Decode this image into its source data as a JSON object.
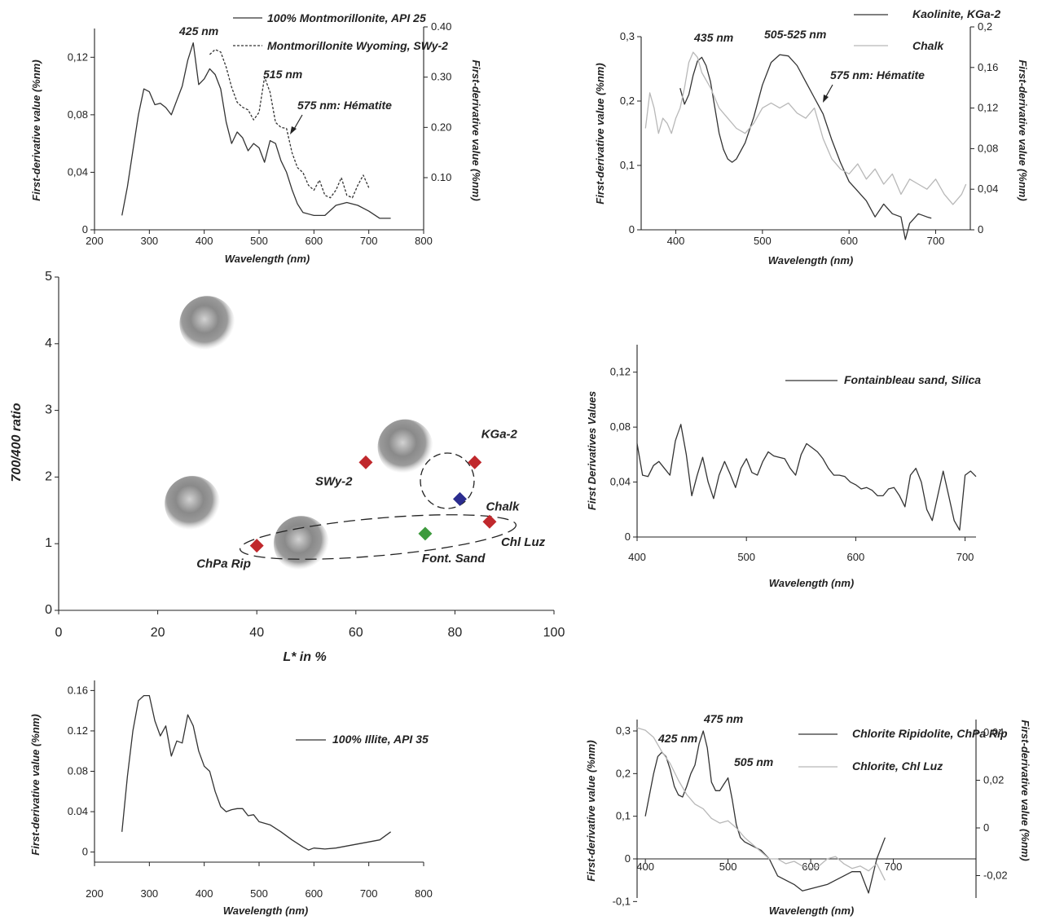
{
  "chart_data": [
    {
      "id": "p1",
      "type": "line",
      "xlabel": "Wavelength (nm)",
      "ylabel": "First-derivative value (%nm)",
      "ylabel_right": "First-derivative value (%nm)",
      "xlim": [
        200,
        800
      ],
      "ylim": [
        0,
        0.14
      ],
      "ylim_right": [
        0.02,
        0.4
      ],
      "xticks": [
        "200",
        "300",
        "400",
        "500",
        "600",
        "700",
        "800"
      ],
      "yticks": [
        "0",
        "0,04",
        "0,08",
        "0,12"
      ],
      "yticks_right": [
        "0.10",
        "0.20",
        "0.30",
        "0.40"
      ],
      "series": [
        {
          "name": "100% Montmorillonite, API 25",
          "axis": "left",
          "style": "solid",
          "color": "#333333",
          "x": [
            250,
            260,
            270,
            280,
            290,
            300,
            310,
            320,
            330,
            340,
            350,
            360,
            370,
            380,
            390,
            400,
            410,
            420,
            430,
            440,
            450,
            460,
            470,
            480,
            490,
            500,
            510,
            520,
            530,
            540,
            550,
            560,
            570,
            580,
            600,
            620,
            640,
            660,
            680,
            700,
            720,
            740
          ],
          "y": [
            0.01,
            0.03,
            0.055,
            0.08,
            0.098,
            0.096,
            0.087,
            0.088,
            0.085,
            0.08,
            0.09,
            0.1,
            0.118,
            0.13,
            0.101,
            0.105,
            0.112,
            0.108,
            0.098,
            0.075,
            0.06,
            0.068,
            0.064,
            0.055,
            0.06,
            0.057,
            0.047,
            0.062,
            0.06,
            0.048,
            0.04,
            0.028,
            0.018,
            0.012,
            0.01,
            0.01,
            0.017,
            0.019,
            0.017,
            0.013,
            0.008,
            0.008
          ]
        },
        {
          "name": "Montmorillonite Wyoming, SWy-2",
          "axis": "right",
          "style": "dashed",
          "color": "#333333",
          "x": [
            410,
            420,
            430,
            440,
            450,
            460,
            470,
            480,
            490,
            500,
            510,
            520,
            530,
            540,
            550,
            560,
            570,
            580,
            590,
            600,
            610,
            620,
            630,
            640,
            650,
            660,
            670,
            680,
            690,
            700
          ],
          "y": [
            0.345,
            0.355,
            0.35,
            0.32,
            0.28,
            0.25,
            0.24,
            0.235,
            0.215,
            0.23,
            0.3,
            0.27,
            0.21,
            0.2,
            0.198,
            0.15,
            0.12,
            0.11,
            0.085,
            0.075,
            0.095,
            0.065,
            0.06,
            0.075,
            0.1,
            0.065,
            0.06,
            0.085,
            0.105,
            0.08
          ]
        }
      ],
      "annotations": [
        "425 nm",
        "515 nm",
        "575 nm: Hématite"
      ]
    },
    {
      "id": "p2",
      "type": "line",
      "xlabel": "Wavelength (nm)",
      "ylabel": "First-derivative value (%nm)",
      "ylabel_right": "First-derivative value (%nm)",
      "xlim": [
        360,
        740
      ],
      "ylim": [
        0,
        0.3
      ],
      "ylim_right": [
        0,
        0.2
      ],
      "xticks": [
        "400",
        "500",
        "600",
        "700"
      ],
      "yticks": [
        "0",
        "0,1",
        "0,2",
        "0,3"
      ],
      "yticks_right": [
        "0",
        "0,04",
        "0,08",
        "0,12",
        "0,16",
        "0,2"
      ],
      "series": [
        {
          "name": "Kaolinite, KGa-2",
          "axis": "left",
          "style": "solid",
          "color": "#333333",
          "x": [
            405,
            410,
            415,
            420,
            425,
            430,
            435,
            440,
            445,
            450,
            455,
            460,
            465,
            470,
            480,
            490,
            500,
            510,
            520,
            530,
            540,
            550,
            560,
            570,
            580,
            590,
            600,
            610,
            620,
            630,
            640,
            650,
            660,
            665,
            670,
            680,
            690,
            695
          ],
          "y": [
            0.22,
            0.195,
            0.21,
            0.24,
            0.262,
            0.268,
            0.255,
            0.23,
            0.19,
            0.15,
            0.125,
            0.11,
            0.105,
            0.11,
            0.135,
            0.175,
            0.225,
            0.26,
            0.272,
            0.27,
            0.255,
            0.23,
            0.205,
            0.18,
            0.14,
            0.105,
            0.075,
            0.06,
            0.045,
            0.02,
            0.04,
            0.025,
            0.02,
            -0.015,
            0.01,
            0.025,
            0.02,
            0.018
          ]
        },
        {
          "name": "Chalk",
          "axis": "right",
          "style": "solid",
          "color": "#b8b8b8",
          "x": [
            365,
            370,
            375,
            380,
            385,
            390,
            395,
            400,
            405,
            410,
            415,
            420,
            425,
            430,
            440,
            450,
            460,
            470,
            480,
            490,
            500,
            510,
            520,
            530,
            540,
            550,
            560,
            570,
            580,
            590,
            600,
            610,
            620,
            630,
            640,
            650,
            660,
            670,
            680,
            690,
            700,
            710,
            720,
            730,
            735
          ],
          "y": [
            0.1,
            0.135,
            0.12,
            0.095,
            0.11,
            0.105,
            0.095,
            0.11,
            0.12,
            0.14,
            0.165,
            0.175,
            0.17,
            0.155,
            0.14,
            0.12,
            0.11,
            0.1,
            0.095,
            0.105,
            0.12,
            0.125,
            0.12,
            0.125,
            0.115,
            0.11,
            0.12,
            0.09,
            0.07,
            0.06,
            0.055,
            0.065,
            0.05,
            0.06,
            0.045,
            0.055,
            0.035,
            0.05,
            0.045,
            0.04,
            0.05,
            0.035,
            0.025,
            0.035,
            0.045
          ]
        }
      ],
      "annotations": [
        "435 nm",
        "505-525 nm",
        "575 nm: Hématite"
      ]
    },
    {
      "id": "p3",
      "type": "scatter",
      "xlabel": "L* in %",
      "ylabel": "700/400 ratio",
      "xlim": [
        0,
        100
      ],
      "ylim": [
        0,
        5
      ],
      "xticks": [
        "0",
        "20",
        "40",
        "60",
        "80",
        "100"
      ],
      "yticks": [
        "0",
        "1",
        "2",
        "3",
        "4",
        "5"
      ],
      "points": [
        {
          "label": "SWy-2",
          "x": 62,
          "y": 2.22,
          "color": "#c0282c"
        },
        {
          "label": "KGa-2",
          "x": 84,
          "y": 2.22,
          "color": "#c0282c"
        },
        {
          "label": "Chalk",
          "x": 81,
          "y": 1.67,
          "color": "#2b2c8f"
        },
        {
          "label": "Chl Luz",
          "x": 87,
          "y": 1.33,
          "color": "#c0282c"
        },
        {
          "label": "Font. Sand",
          "x": 74,
          "y": 1.15,
          "color": "#3d9a3d"
        },
        {
          "label": "ChPa Rip",
          "x": 40,
          "y": 0.97,
          "color": "#c0282c"
        }
      ],
      "blurred_points": [
        {
          "x": 30,
          "y": 4.3
        },
        {
          "x": 70,
          "y": 2.45
        },
        {
          "x": 27,
          "y": 1.6
        },
        {
          "x": 49,
          "y": 1.0
        }
      ]
    },
    {
      "id": "p4",
      "type": "line",
      "xlabel": "Wavelength (nm)",
      "ylabel": "First Derivatives Values",
      "xlim": [
        400,
        710
      ],
      "ylim": [
        0,
        0.14
      ],
      "xticks": [
        "400",
        "500",
        "600",
        "700"
      ],
      "yticks": [
        "0",
        "0,04",
        "0,08",
        "0,12"
      ],
      "series": [
        {
          "name": "Fontainbleau sand, Silica",
          "axis": "left",
          "style": "solid",
          "color": "#333333",
          "x": [
            400,
            405,
            410,
            415,
            420,
            425,
            430,
            435,
            440,
            445,
            450,
            455,
            460,
            465,
            470,
            475,
            480,
            485,
            490,
            495,
            500,
            505,
            510,
            515,
            520,
            525,
            530,
            535,
            540,
            545,
            550,
            555,
            560,
            565,
            570,
            575,
            580,
            585,
            590,
            595,
            600,
            605,
            610,
            615,
            620,
            625,
            630,
            635,
            640,
            645,
            650,
            655,
            660,
            665,
            670,
            675,
            680,
            685,
            690,
            695,
            700,
            705,
            710
          ],
          "y": [
            0.068,
            0.045,
            0.044,
            0.052,
            0.055,
            0.05,
            0.045,
            0.07,
            0.082,
            0.06,
            0.03,
            0.045,
            0.058,
            0.04,
            0.028,
            0.045,
            0.055,
            0.046,
            0.036,
            0.05,
            0.057,
            0.047,
            0.045,
            0.055,
            0.062,
            0.059,
            0.058,
            0.057,
            0.05,
            0.045,
            0.06,
            0.068,
            0.065,
            0.062,
            0.057,
            0.05,
            0.045,
            0.045,
            0.044,
            0.04,
            0.038,
            0.035,
            0.036,
            0.034,
            0.03,
            0.03,
            0.035,
            0.036,
            0.03,
            0.022,
            0.045,
            0.05,
            0.04,
            0.02,
            0.012,
            0.03,
            0.048,
            0.03,
            0.012,
            0.005,
            0.045,
            0.048,
            0.044
          ]
        }
      ]
    },
    {
      "id": "p5",
      "type": "line",
      "xlabel": "Wavelength (nm)",
      "ylabel": "First-derivative value (%nm)",
      "xlim": [
        200,
        800
      ],
      "ylim": [
        -0.01,
        0.17
      ],
      "xticks": [
        "200",
        "300",
        "400",
        "500",
        "600",
        "700",
        "800"
      ],
      "yticks": [
        "0",
        "0.04",
        "0.08",
        "0.12",
        "0.16"
      ],
      "series": [
        {
          "name": "100% Illite, API 35",
          "axis": "left",
          "style": "solid",
          "color": "#333333",
          "x": [
            250,
            260,
            270,
            280,
            290,
            300,
            310,
            320,
            330,
            340,
            350,
            360,
            370,
            380,
            390,
            400,
            410,
            420,
            430,
            440,
            450,
            460,
            470,
            480,
            490,
            500,
            520,
            540,
            560,
            580,
            590,
            600,
            620,
            640,
            660,
            680,
            700,
            720,
            740
          ],
          "y": [
            0.02,
            0.075,
            0.12,
            0.15,
            0.155,
            0.155,
            0.13,
            0.115,
            0.125,
            0.095,
            0.11,
            0.108,
            0.136,
            0.125,
            0.1,
            0.085,
            0.08,
            0.06,
            0.045,
            0.04,
            0.042,
            0.043,
            0.043,
            0.036,
            0.037,
            0.03,
            0.027,
            0.02,
            0.012,
            0.005,
            0.002,
            0.004,
            0.003,
            0.004,
            0.006,
            0.008,
            0.01,
            0.012,
            0.02
          ]
        }
      ]
    },
    {
      "id": "p6",
      "type": "line",
      "xlabel": "Wavelength (nm)",
      "ylabel": "First-derivative value (%nm)",
      "ylabel_right": "First-derivative value (%nm)",
      "xlim": [
        390,
        800
      ],
      "ylim": [
        -0.12,
        0.33
      ],
      "ylim_right": [
        -0.025,
        0.046
      ],
      "xticks": [
        "400",
        "500",
        "600",
        "700"
      ],
      "yticks": [
        "-0,1",
        "0",
        "0,1",
        "0,2",
        "0,3"
      ],
      "yticks_right": [
        "-0,02",
        "0",
        "0,02",
        "0,04"
      ],
      "series": [
        {
          "name": "Chlorite Ripidolite, ChPa Rip",
          "axis": "left",
          "style": "solid",
          "color": "#333333",
          "x": [
            400,
            405,
            410,
            415,
            420,
            425,
            430,
            435,
            440,
            445,
            450,
            455,
            460,
            465,
            470,
            475,
            480,
            485,
            490,
            495,
            500,
            505,
            510,
            515,
            520,
            530,
            540,
            550,
            560,
            570,
            580,
            590,
            600,
            610,
            620,
            630,
            640,
            650,
            660,
            670,
            680,
            690
          ],
          "y": [
            0.1,
            0.15,
            0.2,
            0.24,
            0.25,
            0.24,
            0.21,
            0.17,
            0.15,
            0.145,
            0.17,
            0.2,
            0.22,
            0.27,
            0.3,
            0.26,
            0.18,
            0.16,
            0.16,
            0.175,
            0.19,
            0.14,
            0.08,
            0.05,
            0.04,
            0.03,
            0.02,
            0.0,
            -0.04,
            -0.05,
            -0.06,
            -0.075,
            -0.07,
            -0.065,
            -0.06,
            -0.05,
            -0.04,
            -0.03,
            -0.03,
            -0.08,
            0.0,
            0.05
          ]
        },
        {
          "name": "Chlorite, Chl Luz",
          "axis": "right",
          "style": "solid",
          "color": "#b8b8b8",
          "x": [
            390,
            400,
            410,
            420,
            430,
            440,
            450,
            460,
            470,
            480,
            490,
            500,
            510,
            520,
            530,
            540,
            550,
            560,
            570,
            580,
            590,
            600,
            610,
            620,
            630,
            640,
            650,
            660,
            670,
            680,
            690
          ],
          "y": [
            0.042,
            0.041,
            0.038,
            0.032,
            0.027,
            0.02,
            0.014,
            0.01,
            0.008,
            0.004,
            0.002,
            0.003,
            0.0,
            -0.004,
            -0.007,
            -0.01,
            -0.013,
            -0.013,
            -0.015,
            -0.014,
            -0.016,
            -0.017,
            -0.016,
            -0.013,
            -0.012,
            -0.015,
            -0.017,
            -0.016,
            -0.018,
            -0.015,
            -0.022
          ]
        }
      ],
      "annotations": [
        "425 nm",
        "475 nm",
        "505 nm"
      ]
    }
  ]
}
